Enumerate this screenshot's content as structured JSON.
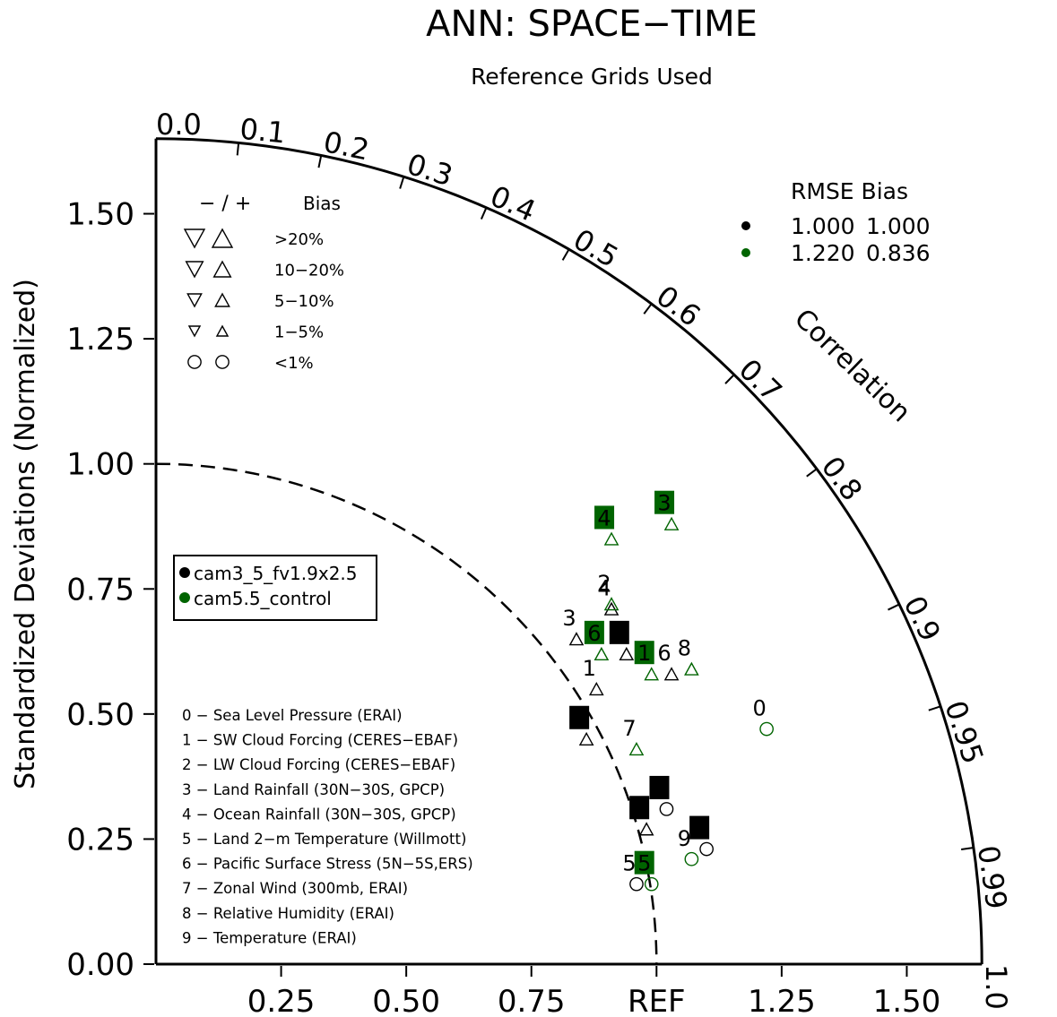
{
  "chart_data": {
    "type": "taylor",
    "title": "ANN: SPACE−TIME",
    "subtitle": "Reference Grids Used",
    "ylabel": "Standardized Deviations (Normalized)",
    "angular_label": "Correlation",
    "std_range": [
      0,
      1.65
    ],
    "ref_std": 1.0,
    "y_ticks": [
      "0.00",
      "0.25",
      "0.50",
      "0.75",
      "1.00",
      "1.25",
      "1.50"
    ],
    "x_ticks": [
      "0.25",
      "0.50",
      "0.75",
      "REF",
      "1.25",
      "1.50"
    ],
    "corr_ticks": [
      {
        "value": 0.0,
        "label": "0.0"
      },
      {
        "value": 0.1,
        "label": "0.1"
      },
      {
        "value": 0.2,
        "label": "0.2"
      },
      {
        "value": 0.3,
        "label": "0.3"
      },
      {
        "value": 0.4,
        "label": "0.4"
      },
      {
        "value": 0.5,
        "label": "0.5"
      },
      {
        "value": 0.6,
        "label": "0.6"
      },
      {
        "value": 0.7,
        "label": "0.7"
      },
      {
        "value": 0.8,
        "label": "0.8"
      },
      {
        "value": 0.9,
        "label": "0.9"
      },
      {
        "value": 0.95,
        "label": "0.95"
      },
      {
        "value": 0.99,
        "label": "0.99"
      },
      {
        "value": 1.0,
        "label": "1.0"
      }
    ],
    "bias_legend": {
      "header_sign": "− / +",
      "header_bias": "Bias",
      "rows": [
        "&gt;20%",
        "10−20%",
        "5−10%",
        "1−5%",
        "&lt;1%"
      ]
    },
    "rmse_bias_table": {
      "header": "RMSE  Bias",
      "rows": [
        {
          "color": "#000000",
          "rmse": "1.000",
          "bias": "1.000"
        },
        {
          "color": "#006400",
          "rmse": "1.220",
          "bias": "0.836"
        }
      ]
    },
    "series": [
      {
        "name": "cam3_5_fv1.9x2.5",
        "color": "#000000",
        "points": [
          {
            "id": "0",
            "x": 1.02,
            "y": 0.31,
            "marker": "circle",
            "boxed": true
          },
          {
            "id": "1",
            "x": 0.88,
            "y": 0.55,
            "marker": "triangle-up",
            "boxed": false
          },
          {
            "id": "2",
            "x": 0.94,
            "y": 0.62,
            "marker": "triangle-up",
            "boxed": true
          },
          {
            "id": "3",
            "x": 0.84,
            "y": 0.65,
            "marker": "triangle-up",
            "boxed": false
          },
          {
            "id": "4",
            "x": 0.91,
            "y": 0.71,
            "marker": "triangle-up",
            "boxed": false
          },
          {
            "id": "5",
            "x": 0.96,
            "y": 0.16,
            "marker": "circle",
            "boxed": false
          },
          {
            "id": "6",
            "x": 1.03,
            "y": 0.58,
            "marker": "triangle-up",
            "boxed": false
          },
          {
            "id": "7",
            "x": 0.98,
            "y": 0.27,
            "marker": "triangle-up",
            "boxed": true
          },
          {
            "id": "8",
            "x": 0.86,
            "y": 0.45,
            "marker": "triangle-up",
            "boxed": true
          },
          {
            "id": "9",
            "x": 1.1,
            "y": 0.23,
            "marker": "circle",
            "boxed": true
          }
        ]
      },
      {
        "name": "cam5.5_control",
        "color": "#006400",
        "points": [
          {
            "id": "0",
            "x": 1.22,
            "y": 0.47,
            "marker": "circle",
            "boxed": false
          },
          {
            "id": "1",
            "x": 0.99,
            "y": 0.58,
            "marker": "triangle-up",
            "boxed": true
          },
          {
            "id": "2",
            "x": 0.91,
            "y": 0.72,
            "marker": "triangle-up",
            "boxed": false
          },
          {
            "id": "3",
            "x": 1.03,
            "y": 0.88,
            "marker": "triangle-up",
            "boxed": true
          },
          {
            "id": "4",
            "x": 0.91,
            "y": 0.85,
            "marker": "triangle-up",
            "boxed": true
          },
          {
            "id": "5",
            "x": 0.99,
            "y": 0.16,
            "marker": "circle",
            "boxed": true
          },
          {
            "id": "6",
            "x": 0.89,
            "y": 0.62,
            "marker": "triangle-up",
            "boxed": true
          },
          {
            "id": "7",
            "x": 0.96,
            "y": 0.43,
            "marker": "triangle-up",
            "boxed": false
          },
          {
            "id": "8",
            "x": 1.07,
            "y": 0.59,
            "marker": "triangle-up",
            "boxed": false
          },
          {
            "id": "9",
            "x": 1.07,
            "y": 0.21,
            "marker": "circle",
            "boxed": false
          }
        ]
      }
    ],
    "case_legend": [
      "cam3_5_fv1.9x2.5",
      "cam5.5_control"
    ],
    "variables": [
      "0 − Sea Level Pressure (ERAI)",
      "1 − SW Cloud Forcing (CERES−EBAF)",
      "2 − LW Cloud Forcing (CERES−EBAF)",
      "3 − Land Rainfall (30N−30S, GPCP)",
      "4 − Ocean Rainfall (30N−30S, GPCP)",
      "5 − Land 2−m Temperature (Willmott)",
      "6 − Pacific Surface Stress (5N−5S,ERS)",
      "7 − Zonal Wind (300mb, ERAI)",
      "8 − Relative Humidity (ERAI)",
      "9 − Temperature (ERAI)"
    ]
  }
}
